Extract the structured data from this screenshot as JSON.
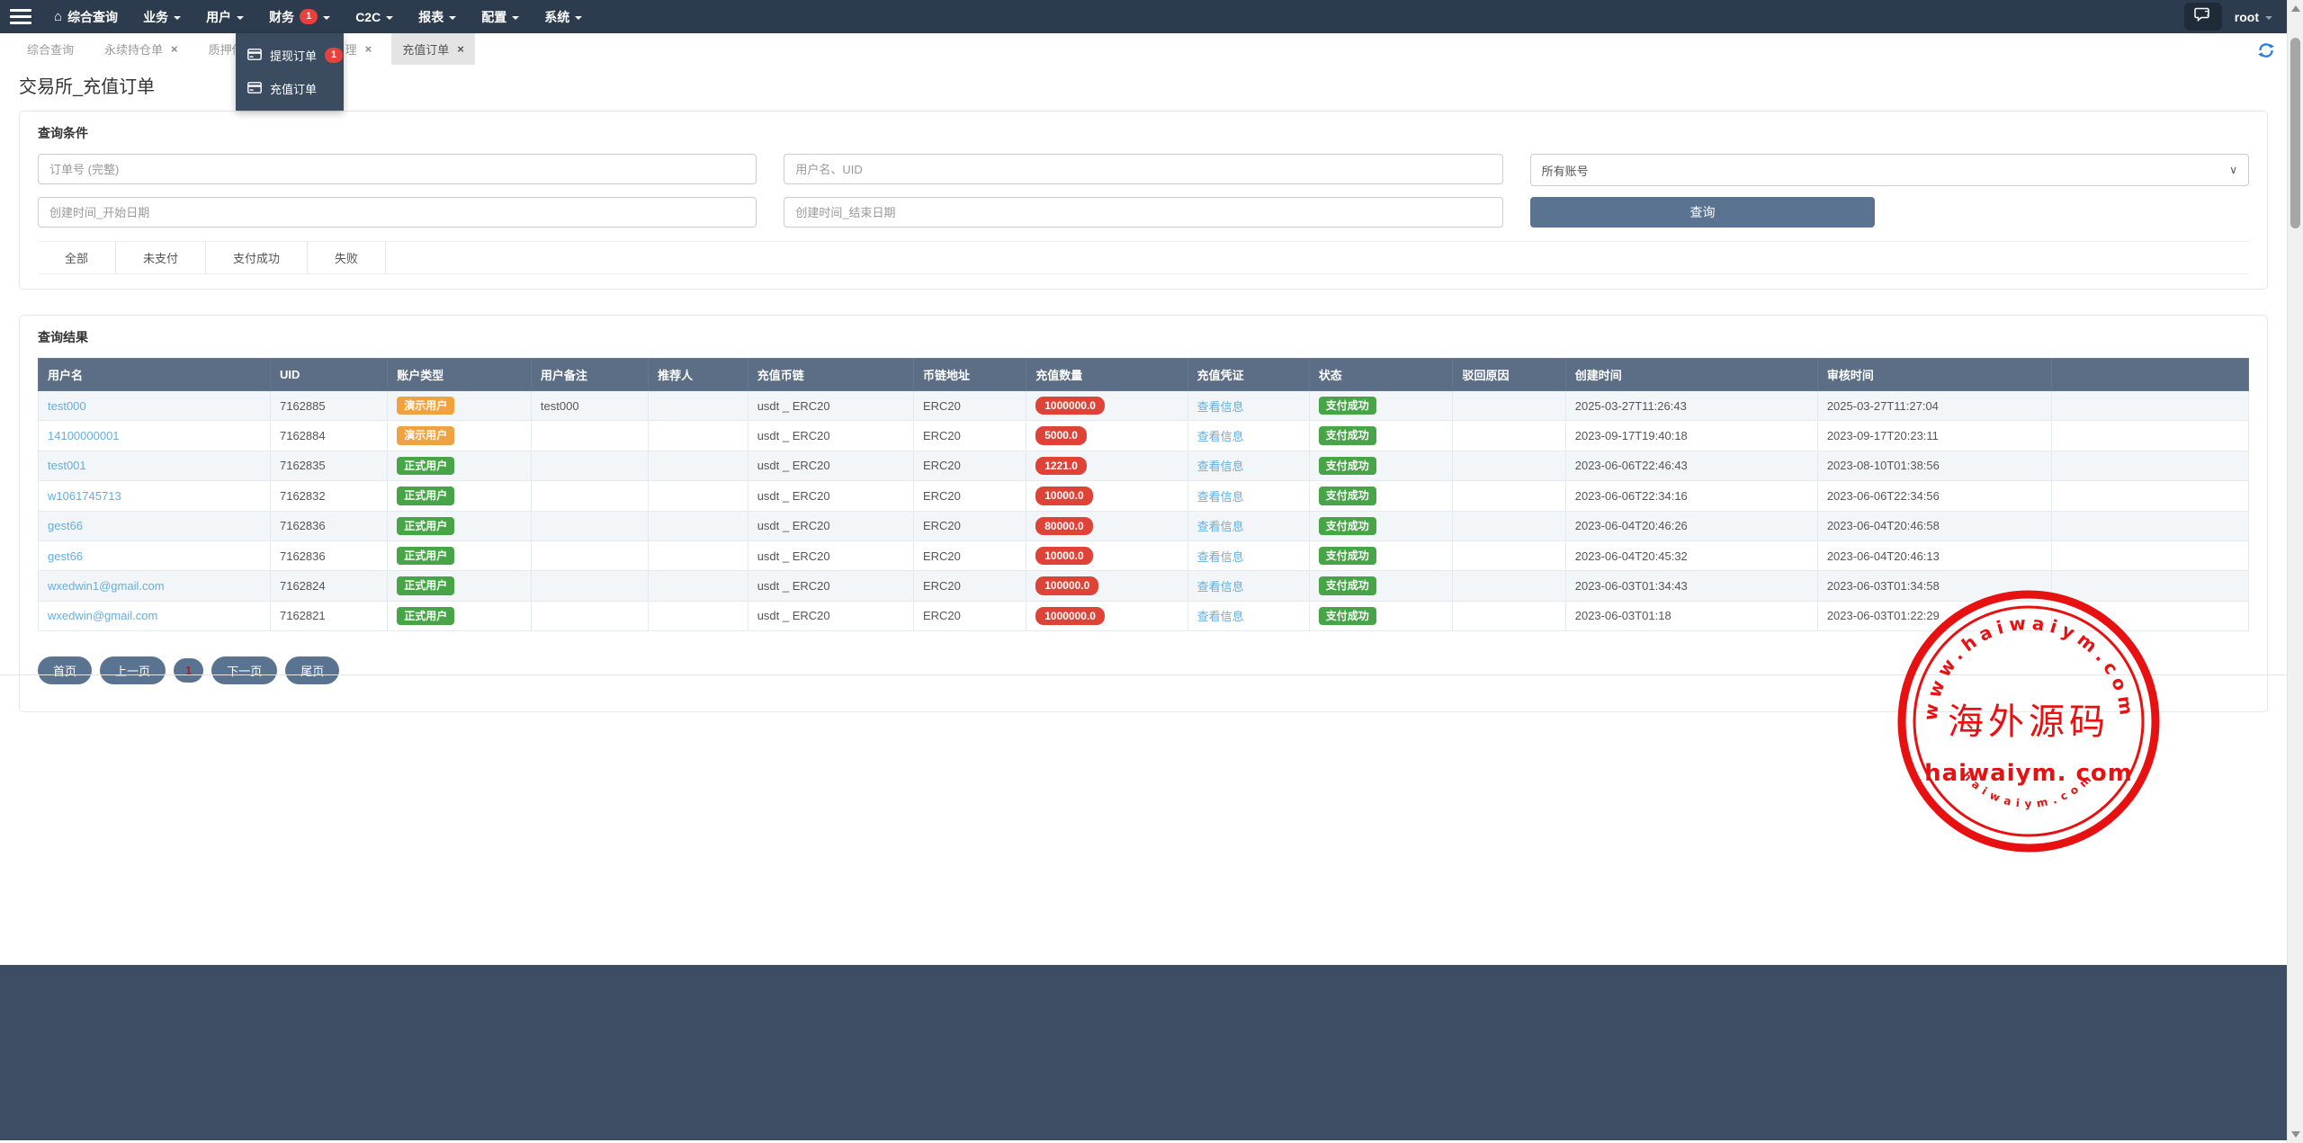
{
  "navbar": {
    "items": [
      {
        "label": "综合查询",
        "icon": "home",
        "caret": false
      },
      {
        "label": "业务",
        "caret": true
      },
      {
        "label": "用户",
        "caret": true
      },
      {
        "label": "财务",
        "caret": true,
        "badge": "1"
      },
      {
        "label": "C2C",
        "caret": true
      },
      {
        "label": "报表",
        "caret": true
      },
      {
        "label": "配置",
        "caret": true
      },
      {
        "label": "系统",
        "caret": true
      }
    ],
    "user": "root"
  },
  "finance_dropdown": {
    "items": [
      {
        "label": "提现订单",
        "badge": "1",
        "icon": "card"
      },
      {
        "label": "充值订单",
        "icon": "card"
      }
    ]
  },
  "tabs": [
    {
      "label": "综合查询",
      "closable": false,
      "active": false
    },
    {
      "label": "永续持仓单",
      "closable": true,
      "active": false
    },
    {
      "label": "质押借币",
      "closable": false,
      "active": false,
      "partially_hidden": true
    },
    {
      "label": "理",
      "closable": true,
      "active": false,
      "partially_hidden": true
    },
    {
      "label": "充值订单",
      "closable": true,
      "active": true
    }
  ],
  "page": {
    "title": "交易所_充值订单"
  },
  "search": {
    "panel_title": "查询条件",
    "order_no_placeholder": "订单号 (完整)",
    "user_placeholder": "用户名、UID",
    "account_select_value": "所有账号",
    "date_start_placeholder": "创建时间_开始日期",
    "date_end_placeholder": "创建时间_结束日期",
    "search_button": "查询",
    "status_filters": [
      "全部",
      "未支付",
      "支付成功",
      "失败"
    ]
  },
  "results": {
    "panel_title": "查询结果",
    "columns": [
      "用户名",
      "UID",
      "账户类型",
      "用户备注",
      "推荐人",
      "充值币链",
      "币链地址",
      "充值数量",
      "充值凭证",
      "状态",
      "驳回原因",
      "创建时间",
      "审核时间",
      ""
    ],
    "view_info_label": "查看信息",
    "rows": [
      {
        "username": "test000",
        "uid": "7162885",
        "account_type": "演示用户",
        "account_type_variant": "demo",
        "remark": "test000",
        "referrer": "",
        "coin": "usdt _ ERC20",
        "chain": "ERC20",
        "amount": "1000000.0",
        "status": "支付成功",
        "reject_reason": "",
        "created": "2025-03-27T11:26:43",
        "audited": "2025-03-27T11:27:04"
      },
      {
        "username": "14100000001",
        "uid": "7162884",
        "account_type": "演示用户",
        "account_type_variant": "demo",
        "remark": "",
        "referrer": "",
        "coin": "usdt _ ERC20",
        "chain": "ERC20",
        "amount": "5000.0",
        "status": "支付成功",
        "reject_reason": "",
        "created": "2023-09-17T19:40:18",
        "audited": "2023-09-17T20:23:11"
      },
      {
        "username": "test001",
        "uid": "7162835",
        "account_type": "正式用户",
        "account_type_variant": "formal",
        "remark": "",
        "referrer": "",
        "coin": "usdt _ ERC20",
        "chain": "ERC20",
        "amount": "1221.0",
        "status": "支付成功",
        "reject_reason": "",
        "created": "2023-06-06T22:46:43",
        "audited": "2023-08-10T01:38:56"
      },
      {
        "username": "w1061745713",
        "uid": "7162832",
        "account_type": "正式用户",
        "account_type_variant": "formal",
        "remark": "",
        "referrer": "",
        "coin": "usdt _ ERC20",
        "chain": "ERC20",
        "amount": "10000.0",
        "status": "支付成功",
        "reject_reason": "",
        "created": "2023-06-06T22:34:16",
        "audited": "2023-06-06T22:34:56"
      },
      {
        "username": "gest66",
        "uid": "7162836",
        "account_type": "正式用户",
        "account_type_variant": "formal",
        "remark": "",
        "referrer": "",
        "coin": "usdt _ ERC20",
        "chain": "ERC20",
        "amount": "80000.0",
        "status": "支付成功",
        "reject_reason": "",
        "created": "2023-06-04T20:46:26",
        "audited": "2023-06-04T20:46:58"
      },
      {
        "username": "gest66",
        "uid": "7162836",
        "account_type": "正式用户",
        "account_type_variant": "formal",
        "remark": "",
        "referrer": "",
        "coin": "usdt _ ERC20",
        "chain": "ERC20",
        "amount": "10000.0",
        "status": "支付成功",
        "reject_reason": "",
        "created": "2023-06-04T20:45:32",
        "audited": "2023-06-04T20:46:13"
      },
      {
        "username": "wxedwin1@gmail.com",
        "uid": "7162824",
        "account_type": "正式用户",
        "account_type_variant": "formal",
        "remark": "",
        "referrer": "",
        "coin": "usdt _ ERC20",
        "chain": "ERC20",
        "amount": "100000.0",
        "status": "支付成功",
        "reject_reason": "",
        "created": "2023-06-03T01:34:43",
        "audited": "2023-06-03T01:34:58"
      },
      {
        "username": "wxedwin@gmail.com",
        "uid": "7162821",
        "account_type": "正式用户",
        "account_type_variant": "formal",
        "remark": "",
        "referrer": "",
        "coin": "usdt _ ERC20",
        "chain": "ERC20",
        "amount": "1000000.0",
        "status": "支付成功",
        "reject_reason": "",
        "created": "2023-06-03T01:18",
        "audited": "2023-06-03T01:22:29"
      }
    ],
    "pagination": [
      {
        "label": "首页",
        "current": false
      },
      {
        "label": "上一页",
        "current": false
      },
      {
        "label": "1",
        "current": true
      },
      {
        "label": "下一页",
        "current": false
      },
      {
        "label": "尾页",
        "current": false
      }
    ]
  },
  "watermark": {
    "top_arc_text": "www.haiwaiym.com",
    "center_text": "海外源码",
    "main_text": "haiwaiym. com",
    "bottom_arc_text": "haiwaiym.com",
    "color": "#e81111"
  },
  "colors": {
    "navbar_bg": "#2d3b4e",
    "dropdown_bg": "#3b4c60",
    "table_header_bg": "#5b6e86",
    "slate_button": "#5a7391",
    "footer_bg": "#3d4d63",
    "badge_red": "#df4337",
    "badge_green": "#47a447",
    "badge_orange": "#f0a240",
    "alert_badge": "#e6413d",
    "link_blue": "#64aede",
    "stamp_red": "#e81111"
  }
}
